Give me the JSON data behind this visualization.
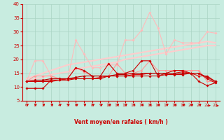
{
  "xlabel": "Vent moyen/en rafales ( km/h )",
  "xlim": [
    -0.5,
    23.5
  ],
  "ylim": [
    5,
    40
  ],
  "yticks": [
    5,
    10,
    15,
    20,
    25,
    30,
    35,
    40
  ],
  "xticks": [
    0,
    1,
    2,
    3,
    4,
    5,
    6,
    7,
    8,
    9,
    10,
    11,
    12,
    13,
    14,
    15,
    16,
    17,
    18,
    19,
    20,
    21,
    22,
    23
  ],
  "background_color": "#c8ece0",
  "grid_color": "#aad4c4",
  "line_pink1": [
    12,
    19.5,
    19.5,
    14,
    13,
    12.5,
    27,
    22,
    17,
    17,
    18,
    18,
    27,
    27,
    30.5,
    37,
    31.5,
    22,
    27,
    26,
    26,
    26,
    30,
    29.5
  ],
  "line_pink2": [
    12,
    14,
    14,
    14,
    13,
    13,
    17,
    15.5,
    14,
    14,
    14,
    18.5,
    15,
    15,
    16,
    19.5,
    16,
    16,
    16,
    16,
    16,
    16,
    12,
    12
  ],
  "line_trend1": [
    13,
    14,
    15,
    16,
    17,
    18,
    18.5,
    19,
    19.5,
    20,
    20.5,
    21,
    21.5,
    22,
    22.5,
    23,
    23.5,
    24,
    24.5,
    25,
    25.5,
    26,
    26.5,
    26
  ],
  "line_trend2": [
    12,
    13,
    13.5,
    14.5,
    15,
    15.5,
    16.5,
    17,
    17.5,
    18,
    18.5,
    19,
    20,
    20.5,
    21,
    21.5,
    22,
    22.5,
    23,
    23.5,
    24,
    24.5,
    25,
    25
  ],
  "line_dark1": [
    9.5,
    9.5,
    9.5,
    12.5,
    12.5,
    13,
    17,
    16,
    14,
    14,
    18.5,
    15,
    15,
    16,
    19.5,
    19.5,
    14,
    15,
    16,
    16,
    15,
    12,
    10.5,
    11.5
  ],
  "line_dark2": [
    12,
    12,
    12,
    12.5,
    12.5,
    13,
    13,
    13,
    13,
    13.5,
    14,
    14,
    14,
    14.5,
    14.5,
    15,
    15,
    15,
    15,
    15.5,
    15,
    14,
    14,
    12
  ],
  "line_dark3": [
    12,
    12.5,
    12.5,
    13,
    13,
    13,
    13.5,
    14,
    14,
    14,
    14,
    14.5,
    14.5,
    15,
    15,
    15,
    15,
    15,
    15,
    15,
    15,
    15,
    13.5,
    12
  ],
  "line_dark4": [
    12,
    12,
    12,
    12,
    12.5,
    12.5,
    13,
    13,
    13,
    13,
    14,
    14,
    14,
    14,
    14,
    14,
    14,
    14.5,
    14.5,
    14.5,
    15,
    15,
    13,
    11.5
  ],
  "color_pink1": "#ffbbbb",
  "color_pink2": "#ff9999",
  "color_trend": "#ffcccc",
  "color_dark1": "#cc0000",
  "color_dark2": "#dd1111",
  "color_dark3": "#bb0000",
  "color_dark4": "#cc0000",
  "arrow_color": "#cc0000",
  "label_color": "#cc0000",
  "tick_color": "#cc0000",
  "axis_color": "#cc0000",
  "arrow_angles_deg": [
    50,
    50,
    50,
    50,
    50,
    50,
    45,
    45,
    45,
    45,
    45,
    45,
    50,
    50,
    55,
    60,
    50,
    45,
    45,
    45,
    45,
    45,
    10,
    5
  ]
}
